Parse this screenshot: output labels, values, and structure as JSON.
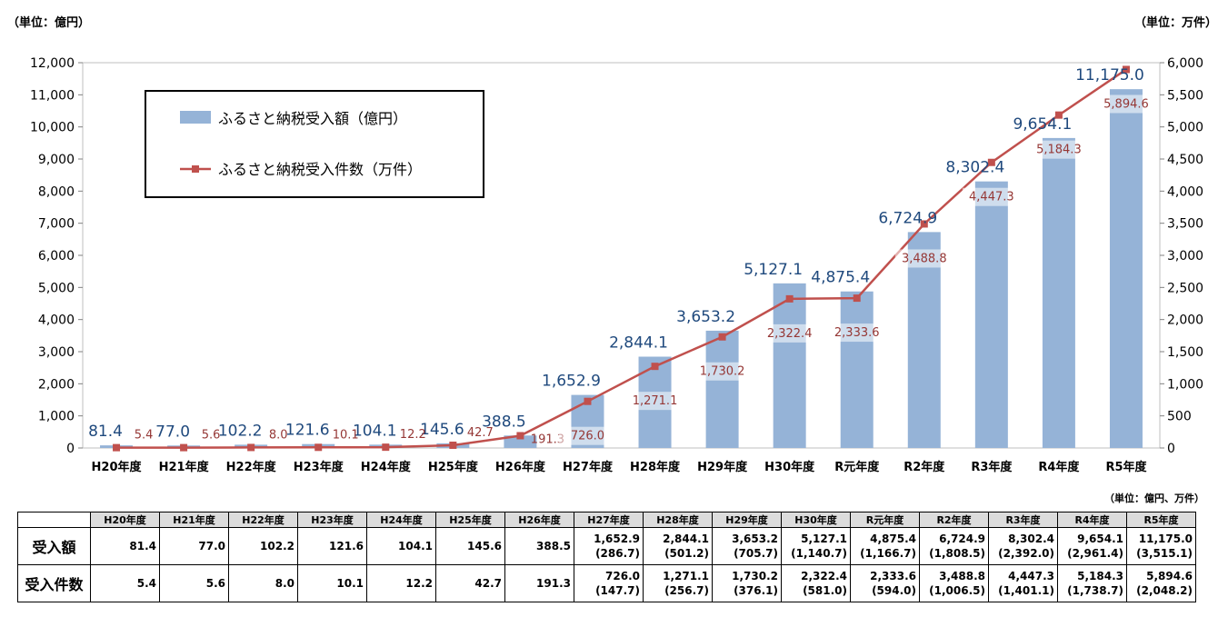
{
  "units": {
    "left": "（単位：億円）",
    "right": "（単位：万件）",
    "table": "（単位：億円、万件）"
  },
  "colors": {
    "bar": "#95b3d7",
    "line": "#c0504d",
    "bar_label": "#1f497d",
    "line_label": "#953735"
  },
  "chart_data": {
    "type": "bar",
    "categories": [
      "H20年度",
      "H21年度",
      "H22年度",
      "H23年度",
      "H24年度",
      "H25年度",
      "H26年度",
      "H27年度",
      "H28年度",
      "H29年度",
      "H30年度",
      "R元年度",
      "R2年度",
      "R3年度",
      "R4年度",
      "R5年度"
    ],
    "series": [
      {
        "name": "ふるさと納税受入額（億円）",
        "type": "bar",
        "axis": "left",
        "values": [
          81.4,
          77.0,
          102.2,
          121.6,
          104.1,
          145.6,
          388.5,
          1652.9,
          2844.1,
          3653.2,
          5127.1,
          4875.4,
          6724.9,
          8302.4,
          9654.1,
          11175.0
        ],
        "labels": [
          "81.4",
          "77.0",
          "102.2",
          "121.6",
          "104.1",
          "145.6",
          "388.5",
          "1,652.9",
          "2,844.1",
          "3,653.2",
          "5,127.1",
          "4,875.4",
          "6,724.9",
          "8,302.4",
          "9,654.1",
          "11,175.0"
        ]
      },
      {
        "name": "ふるさと納税受入件数（万件）",
        "type": "line",
        "axis": "right",
        "values": [
          5.4,
          5.6,
          8.0,
          10.1,
          12.2,
          42.7,
          191.3,
          726.0,
          1271.1,
          1730.2,
          2322.4,
          2333.6,
          3488.8,
          4447.3,
          5184.3,
          5894.6
        ],
        "labels": [
          "5.4",
          "5.6",
          "8.0",
          "10.1",
          "12.2",
          "42.7",
          "191.3",
          "726.0",
          "1,271.1",
          "1,730.2",
          "2,322.4",
          "2,333.6",
          "3,488.8",
          "4,447.3",
          "5,184.3",
          "5,894.6"
        ]
      }
    ],
    "ylim_left": [
      0,
      12000
    ],
    "ylim_right": [
      0,
      6000
    ],
    "yticks_left": [
      "0",
      "1,000",
      "2,000",
      "3,000",
      "4,000",
      "5,000",
      "6,000",
      "7,000",
      "8,000",
      "9,000",
      "10,000",
      "11,000",
      "12,000"
    ],
    "yticks_right": [
      "0",
      "500",
      "1,000",
      "1,500",
      "2,000",
      "2,500",
      "3,000",
      "3,500",
      "4,000",
      "4,500",
      "5,000",
      "5,500",
      "6,000"
    ],
    "legend": [
      "ふるさと納税受入額（億円）",
      "ふるさと納税受入件数（万件）"
    ],
    "legend_position": "top-left",
    "grid": false
  },
  "table": {
    "headers": [
      "H20年度",
      "H21年度",
      "H22年度",
      "H23年度",
      "H24年度",
      "H25年度",
      "H26年度",
      "H27年度",
      "H28年度",
      "H29年度",
      "H30年度",
      "R元年度",
      "R2年度",
      "R3年度",
      "R4年度",
      "R5年度"
    ],
    "rows": [
      {
        "label": "受入額",
        "cells": [
          {
            "v": "81.4",
            "sub": ""
          },
          {
            "v": "77.0",
            "sub": ""
          },
          {
            "v": "102.2",
            "sub": ""
          },
          {
            "v": "121.6",
            "sub": ""
          },
          {
            "v": "104.1",
            "sub": ""
          },
          {
            "v": "145.6",
            "sub": ""
          },
          {
            "v": "388.5",
            "sub": ""
          },
          {
            "v": "1,652.9",
            "sub": "(286.7)"
          },
          {
            "v": "2,844.1",
            "sub": "(501.2)"
          },
          {
            "v": "3,653.2",
            "sub": "(705.7)"
          },
          {
            "v": "5,127.1",
            "sub": "(1,140.7)"
          },
          {
            "v": "4,875.4",
            "sub": "(1,166.7)"
          },
          {
            "v": "6,724.9",
            "sub": "(1,808.5)"
          },
          {
            "v": "8,302.4",
            "sub": "(2,392.0)"
          },
          {
            "v": "9,654.1",
            "sub": "(2,961.4)"
          },
          {
            "v": "11,175.0",
            "sub": "(3,515.1)"
          }
        ]
      },
      {
        "label": "受入件数",
        "cells": [
          {
            "v": "5.4",
            "sub": ""
          },
          {
            "v": "5.6",
            "sub": ""
          },
          {
            "v": "8.0",
            "sub": ""
          },
          {
            "v": "10.1",
            "sub": ""
          },
          {
            "v": "12.2",
            "sub": ""
          },
          {
            "v": "42.7",
            "sub": ""
          },
          {
            "v": "191.3",
            "sub": ""
          },
          {
            "v": "726.0",
            "sub": "(147.7)"
          },
          {
            "v": "1,271.1",
            "sub": "(256.7)"
          },
          {
            "v": "1,730.2",
            "sub": "(376.1)"
          },
          {
            "v": "2,322.4",
            "sub": "(581.0)"
          },
          {
            "v": "2,333.6",
            "sub": "(594.0)"
          },
          {
            "v": "3,488.8",
            "sub": "(1,006.5)"
          },
          {
            "v": "4,447.3",
            "sub": "(1,401.1)"
          },
          {
            "v": "5,184.3",
            "sub": "(1,738.7)"
          },
          {
            "v": "5,894.6",
            "sub": "(2,048.2)"
          }
        ]
      }
    ]
  }
}
